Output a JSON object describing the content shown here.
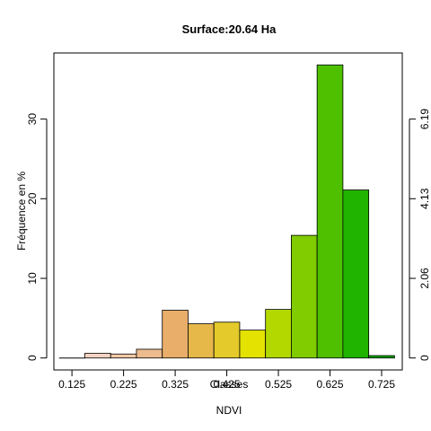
{
  "chart_data": {
    "type": "bar",
    "title": "Surface:20.64 Ha",
    "ylabel": "Fréquence en %",
    "xlabel_lines": [
      "Classes",
      "NDVI"
    ],
    "x_tick_labels": [
      "0.125",
      "0.225",
      "0.325",
      "0.425",
      "0.525",
      "0.625",
      "0.725"
    ],
    "x_tick_values": [
      0.125,
      0.225,
      0.325,
      0.425,
      0.525,
      0.625,
      0.725
    ],
    "bin_width": 0.05,
    "bins": [
      {
        "center": 0.125,
        "value": 0.0,
        "color": "#FFFFFF"
      },
      {
        "center": 0.175,
        "value": 0.6,
        "color": "#F5D3C3"
      },
      {
        "center": 0.225,
        "value": 0.5,
        "color": "#F2C9A8"
      },
      {
        "center": 0.275,
        "value": 1.1,
        "color": "#EDBB8E"
      },
      {
        "center": 0.325,
        "value": 6.0,
        "color": "#E8AE6A"
      },
      {
        "center": 0.375,
        "value": 4.3,
        "color": "#E6B84A"
      },
      {
        "center": 0.425,
        "value": 4.5,
        "color": "#E4CA2A"
      },
      {
        "center": 0.475,
        "value": 3.5,
        "color": "#E4E200"
      },
      {
        "center": 0.525,
        "value": 6.1,
        "color": "#B2D800"
      },
      {
        "center": 0.575,
        "value": 15.4,
        "color": "#80CC00"
      },
      {
        "center": 0.625,
        "value": 36.8,
        "color": "#4EC000"
      },
      {
        "center": 0.675,
        "value": 21.1,
        "color": "#20B400"
      },
      {
        "center": 0.725,
        "value": 0.3,
        "color": "#00A800"
      }
    ],
    "y_left_ticks": [
      0,
      10,
      20,
      30
    ],
    "y_right_ticks": [
      {
        "label": "0",
        "pct": 0
      },
      {
        "label": "2.06",
        "pct": 10
      },
      {
        "label": "4.13",
        "pct": 20
      },
      {
        "label": "6.19",
        "pct": 30
      }
    ],
    "xlim": [
      0.09,
      0.765
    ],
    "ylim": [
      -1.5,
      38.3
    ],
    "grid": false,
    "legend": "none"
  }
}
